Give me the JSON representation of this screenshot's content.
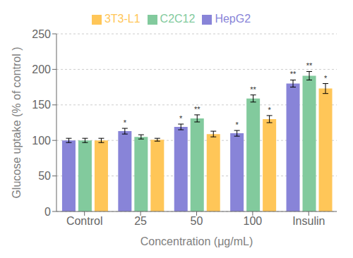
{
  "chart_data": {
    "type": "bar",
    "categories": [
      "Control",
      "25",
      "50",
      "100",
      "Insulin"
    ],
    "series": [
      {
        "name": "HepG2",
        "color": "#8884d8",
        "values": [
          100,
          113,
          119,
          110,
          180
        ],
        "errors": [
          3,
          4,
          4,
          4,
          5
        ],
        "annotations": [
          null,
          "*",
          "*",
          "*",
          "**"
        ]
      },
      {
        "name": "C2C12",
        "color": "#82ca9d",
        "values": [
          100,
          105,
          131,
          159,
          191
        ],
        "errors": [
          3,
          3,
          5,
          5,
          6
        ],
        "annotations": [
          null,
          null,
          "**",
          "**",
          "**"
        ]
      },
      {
        "name": "3T3-L1",
        "color": "#ffc658",
        "values": [
          100,
          101,
          109,
          130,
          173
        ],
        "errors": [
          3,
          2,
          4,
          5,
          7
        ],
        "annotations": [
          null,
          null,
          null,
          "*",
          "*"
        ]
      }
    ],
    "ylabel": "Glucose uptake (% of control )",
    "xlabel": "Concentration (μg/mL)",
    "ylim": [
      0,
      250
    ],
    "yticks": [
      0,
      50,
      100,
      150,
      200,
      250
    ],
    "legend": "top"
  }
}
